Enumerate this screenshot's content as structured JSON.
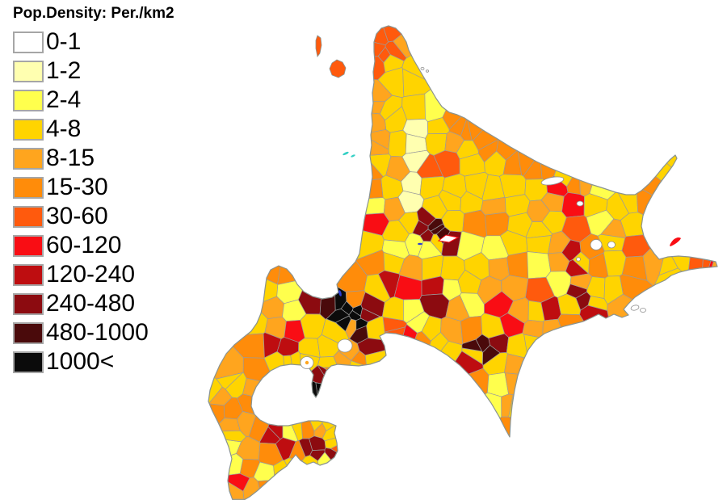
{
  "legend": {
    "title": "Pop.Density: Per./km2",
    "items": [
      {
        "label": "0-1",
        "color": "#FFFFFF"
      },
      {
        "label": "1-2",
        "color": "#FFFFB0"
      },
      {
        "label": "2-4",
        "color": "#FFFF4D"
      },
      {
        "label": "4-8",
        "color": "#FFD400"
      },
      {
        "label": "8-15",
        "color": "#FFA51E"
      },
      {
        "label": "15-30",
        "color": "#FF8C0A"
      },
      {
        "label": "30-60",
        "color": "#FF5A0D"
      },
      {
        "label": "60-120",
        "color": "#F90D14"
      },
      {
        "label": "120-240",
        "color": "#BE0D10"
      },
      {
        "label": "240-480",
        "color": "#8C0B10"
      },
      {
        "label": "480-1000",
        "color": "#4A0A0B"
      },
      {
        "label": "1000<",
        "color": "#0B0B0B"
      }
    ]
  },
  "map": {
    "kind": "choropleth",
    "subject": "hokkaido",
    "sea_color": "#FFFFFF",
    "coast_color": "#8a9390",
    "district_border_color": "#9b9b9b",
    "lake_fill": "#FFFFFF",
    "water_accent_color": "#35D0C5",
    "river_color": "#2B3FD6"
  }
}
